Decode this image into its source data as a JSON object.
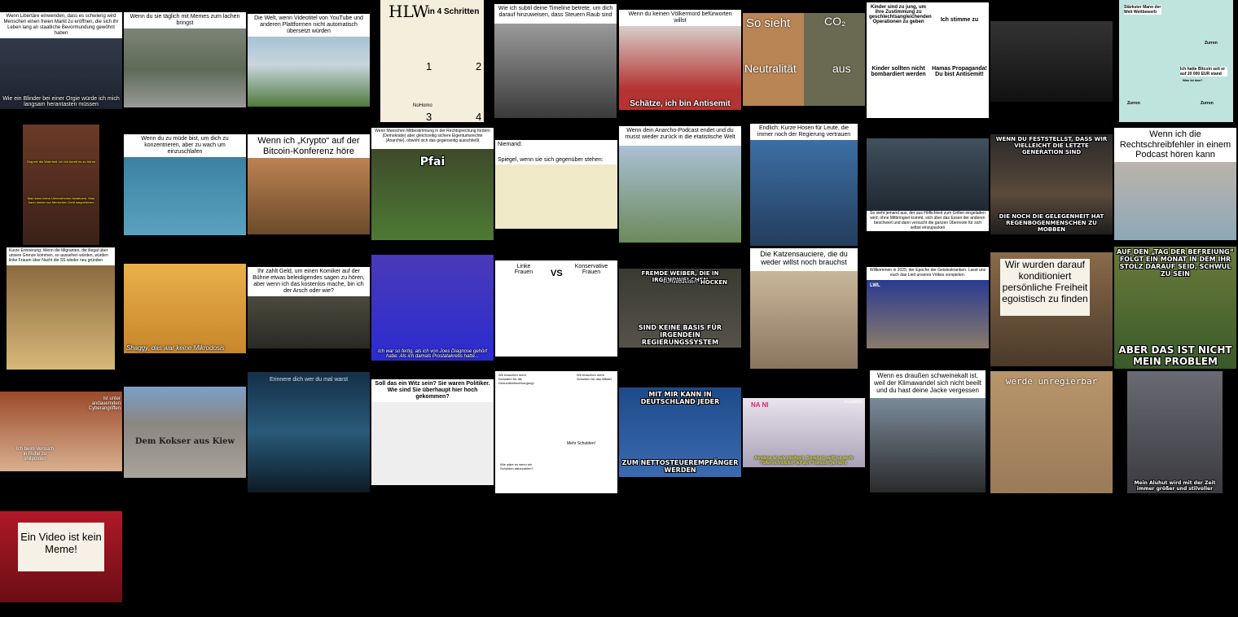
{
  "memes": [
    {
      "caption": "Wenn Libertäre einwenden, dass es schwierig wird Menschen einen freien Markt zu eröffnen, die sich ihr Leben lang an staatliche Bevormundung gewöhnt haben",
      "subtitle": "Wie ein Blinder bei einer Orgie würde ich mich langsam herantasten müssen"
    },
    {
      "caption": "Wenn du sie täglich mit Memes zum lachen bringst"
    },
    {
      "caption": "Die Welt, wenn Videotitel von YouTube und anderen Plattformen nicht automatisch übersetzt würden"
    },
    {
      "title": "HLW",
      "title2": "in 4 Schritten",
      "labels": [
        "1",
        "2",
        "3",
        "4"
      ],
      "tag": "NoHomo"
    },
    {
      "caption": "Wie ich subtil deine Timeline betrete, um dich darauf hinzuweisen, dass Steuern Raub sind"
    },
    {
      "caption": "Wenn du keinen Völkermord befürworten willst",
      "subtitle": "Schätze, ich bin Antisemit"
    },
    {
      "top_left": "So sieht",
      "top_right": "CO₂",
      "bottom_left": "Neutralität",
      "bottom_right": "aus"
    },
    {
      "q1": "Kinder sind zu jung, um ihre Zustimmung zu geschlechtsangleichenden Operationen zu geben",
      "q2": "Ich stimme zu",
      "q3": "Kinder sollten nicht bombardiert werden",
      "q4": "Hamas Propaganda! Du bist Antisemit!"
    },
    {},
    {
      "labels": [
        "Stärkster Mann der Welt Wettbewerb",
        "Zurren",
        "Ich hatte Bitcoin seit er auf 20 000 EUR stand",
        "Was ist das?",
        "Zurren",
        "Zurren"
      ]
    },
    {
      "subtitles": [
        "Sag mir die Wahrheit, ich bin bereit es zu hören",
        "Man kann keine Unternehmen besteuern. Man kann immer nur Menschen Geld wegnehmen"
      ]
    },
    {
      "caption": "Wenn du zu müde bist, um dich zu konzentrieren, aber zu wach um einzuschlafen"
    },
    {
      "caption": "Wenn ich „Krypto“ auf der Bitcoin-Konferenz höre"
    },
    {
      "caption": "Wenn Menschen Mitbestimmung in der Rechtsprechung fordern (Demokratie) aber gleichzeitig sichere Eigentumsrechte (Anarchie), obwohl sich das gegenseitig ausschließt",
      "label": "Pfai"
    },
    {
      "caption": "Niemand:",
      "caption2": "Spiegel, wenn sie sich gegenüber stehen:"
    },
    {
      "caption": "Wenn dein Anarcho-Podcast endet und du musst wieder zurück in die etatistische Welt"
    },
    {
      "caption": "Endlich: Kurze Hosen für Leute, die immer noch der Regierung vertrauen"
    },
    {
      "subtitle": "So sieht jemand aus, der aus Höflichkeit zum Grillen eingeladen wird; ohne Mitbringsel kommt, sich über das Essen der anderen beschwert und dann versucht die ganzen Überreste für sich selbst einzupacken"
    },
    {
      "top": "Wenn du feststellst, dass wir vielleicht die letzte Generation sind",
      "bottom": "die noch die Gelegenheit hat Regenbogenmenschen zu mobben"
    },
    {
      "caption": "Wenn ich die Rechtschreibfehler in einem Podcast hören kann"
    },
    {
      "caption": "Kurze Erinnerung: Wenn die Migranten, die illegal über unsere Grenze kommen, so aussehen würden, würden linke Frauen über Nacht die SS wieder neu gründen"
    },
    {
      "subtitle": "Shaggy, das war keine Mikrodosis"
    },
    {
      "caption": "Ihr zahlt Geld, um einen Komiker auf der Bühne etwas beleidigendes sagen zu hören, aber wenn ich das kostenlos mache, bin ich der Arsch oder wie?"
    },
    {
      "subtitle": "Ich war so fertig, als ich von Joes Diagnose gehört habe. Als ich damals Prostatakrebs hatte..."
    },
    {
      "left": "Linke Frauen",
      "vs": "VS",
      "right": "Konservative Frauen"
    },
    {
      "top": "Fremde Weiber, die in irgendwelchen",
      "mid": "EU-Gebäuden",
      "mid2": "hocken",
      "bottom": "sind keine Basis für irgendein Regierungssystem"
    },
    {
      "caption": "Die Katzensauciere, die du weder willst noch brauchst"
    },
    {
      "caption": "Willkommen in 2025, der Epoche der Geisteskranken. Lasst uns euch das Lied unseres Volkes vorspielen.",
      "logo": "LWL"
    },
    {
      "caption": "Wir wurden darauf konditioniert persönliche Freiheit egoistisch zu finden"
    },
    {
      "top": "Auf den „Tag der Befreiung“ folgt ein Monat in dem ihr stolz darauf seid, schwul zu sein",
      "bottom": "Aber das ist nicht mein Problem"
    },
    {
      "top": "Ist unter andauernden Cyberangriffen",
      "bottom": "Ich beim Versuch in Ruhe zu shitposten"
    },
    {
      "label": "Dem Kokser aus Kiew"
    },
    {
      "caption": "Erinnere dich wer du mal warst"
    },
    {
      "caption": "Soll das ein Witz sein? Sie waren Politiker. Wie sind Sie überhaupt hier hoch gekommen?"
    },
    {
      "b1": "Wir brauchen mehr Schulden für die Gesundheitsversorgung!",
      "b2": "Wir brauchen mehr Schulden für das Militär!",
      "n1": "SED",
      "n2": "AfD",
      "b3": "Wie wäre es wenn wir Schulden abbezahlen?",
      "b4": "Mehr Schulden!"
    },
    {
      "top": "Mit mir kann in Deutschland jeder",
      "bottom": "zum Nettosteuerempfänger werden"
    },
    {
      "logo": "NA NI",
      "subtitle": "Annalena ist sehr intelligent. Soweit ich weiß hat sie ihr Völkerrechtsdiplom auf dem Trampolin gemacht.",
      "corner": "re:publica"
    },
    {
      "caption": "Wenn es draußen schweinekalt ist, weil der Klimawandel sich nicht beeilt und du hast deine Jacke vergessen"
    },
    {
      "caption": "werde unregierbar"
    },
    {
      "subtitle": "Mein Aluhut wird mit der Zeit immer größer und stilvoller"
    },
    {
      "sign": "Ein Video ist kein Meme!"
    }
  ]
}
